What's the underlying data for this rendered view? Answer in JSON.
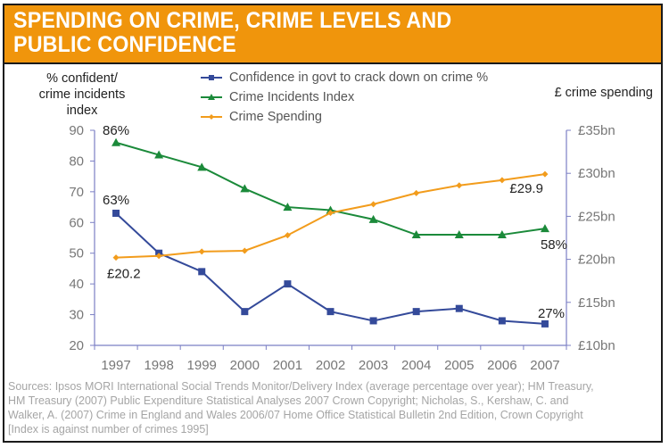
{
  "header": {
    "title_line1": "SPENDING ON CRIME, CRIME LEVELS AND",
    "title_line2": "PUBLIC CONFIDENCE"
  },
  "colors": {
    "header_bg": "#f0950c",
    "confidence": "#344a9a",
    "crime_index": "#1b8a3a",
    "spending": "#f29c1c",
    "axis": "#7b7fc4"
  },
  "chart_data": {
    "type": "line",
    "title": "Spending on crime, crime levels and public confidence",
    "x": [
      "1997",
      "1998",
      "1999",
      "2000",
      "2001",
      "2002",
      "2003",
      "2004",
      "2005",
      "2006",
      "2007"
    ],
    "ylabel_left": "% confident/ crime incidents index",
    "ylabel_right": "£ crime spending",
    "ylim_left": [
      20,
      90
    ],
    "yticks_left": [
      "20",
      "30",
      "40",
      "50",
      "60",
      "70",
      "80",
      "90"
    ],
    "ylim_right": [
      10,
      35
    ],
    "yticks_right": [
      "£10bn",
      "£15bn",
      "£20bn",
      "£25bn",
      "£30bn",
      "£35bn"
    ],
    "legend_position": "top",
    "grid": false,
    "series": [
      {
        "name": "Confidence in govt to crack down on crime %",
        "axis": "left",
        "marker": "square",
        "values": [
          63,
          50,
          44,
          31,
          40,
          31,
          28,
          31,
          32,
          28,
          27
        ]
      },
      {
        "name": "Crime Incidents Index",
        "axis": "left",
        "marker": "triangle",
        "values": [
          86,
          82,
          78,
          71,
          65,
          64,
          61,
          56,
          56,
          56,
          58
        ]
      },
      {
        "name": "Crime Spending",
        "axis": "right",
        "marker": "diamond",
        "values": [
          20.2,
          20.4,
          20.9,
          21.0,
          22.8,
          25.4,
          26.4,
          27.7,
          28.6,
          29.2,
          29.9
        ]
      }
    ],
    "annotations": [
      {
        "series": 1,
        "index": 0,
        "text": "86%"
      },
      {
        "series": 0,
        "index": 0,
        "text": "63%"
      },
      {
        "series": 2,
        "index": 0,
        "text": "£20.2"
      },
      {
        "series": 2,
        "index": 10,
        "text": "£29.9"
      },
      {
        "series": 1,
        "index": 10,
        "text": "58%"
      },
      {
        "series": 0,
        "index": 10,
        "text": "27%"
      }
    ]
  },
  "axis_titles": {
    "left_line1": "% confident/",
    "left_line2": "crime incidents",
    "left_line3": "index",
    "right": "£ crime spending"
  },
  "sources": {
    "line1": "Sources: Ipsos MORI International Social Trends Monitor/Delivery Index (average percentage over year); HM Treasury,",
    "line2": "HM Treasury (2007) Public Expenditure Statistical Analyses 2007 Crown Copyright; Nicholas, S., Kershaw, C. and",
    "line3": "Walker, A. (2007) Crime in England and Wales 2006/07  Home Office Statistical Bulletin 2nd Edition, Crown Copyright",
    "line4": "[Index is against number of crimes 1995]"
  }
}
